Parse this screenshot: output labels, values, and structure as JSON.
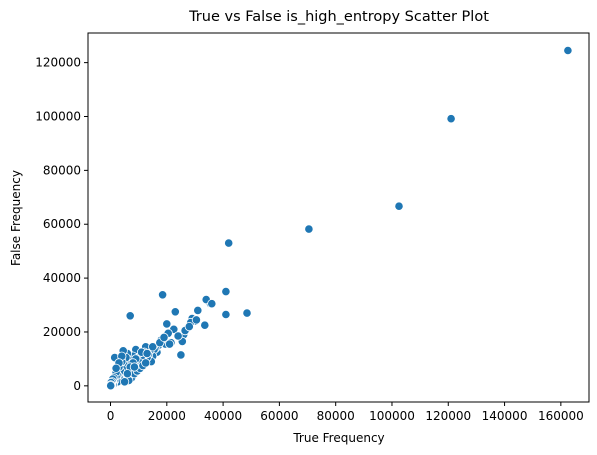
{
  "chart_data": {
    "type": "scatter",
    "title": "True vs False is_high_entropy Scatter Plot",
    "xlabel": "True Frequency",
    "ylabel": "False Frequency",
    "xlim": [
      -8000,
      170000
    ],
    "ylim": [
      -6000,
      131000
    ],
    "xticks": [
      0,
      20000,
      40000,
      60000,
      80000,
      100000,
      120000,
      140000,
      160000
    ],
    "yticks": [
      0,
      20000,
      40000,
      60000,
      80000,
      100000,
      120000
    ],
    "grid": false,
    "point_color": "#1f77b4",
    "points": [
      [
        162500,
        124500
      ],
      [
        121000,
        99200
      ],
      [
        102500,
        66700
      ],
      [
        70500,
        58200
      ],
      [
        42000,
        53000
      ],
      [
        41000,
        35000
      ],
      [
        48500,
        27000
      ],
      [
        41000,
        26500
      ],
      [
        35500,
        30500
      ],
      [
        34000,
        32000
      ],
      [
        33500,
        22500
      ],
      [
        31000,
        28000
      ],
      [
        30000,
        24000
      ],
      [
        29000,
        25000
      ],
      [
        28500,
        23500
      ],
      [
        27000,
        21000
      ],
      [
        26000,
        19000
      ],
      [
        25500,
        16500
      ],
      [
        25000,
        11500
      ],
      [
        23000,
        27500
      ],
      [
        22500,
        21000
      ],
      [
        21500,
        16000
      ],
      [
        20000,
        23000
      ],
      [
        20500,
        19500
      ],
      [
        19500,
        15500
      ],
      [
        18500,
        33800
      ],
      [
        18000,
        17000
      ],
      [
        17000,
        15000
      ],
      [
        16500,
        12500
      ],
      [
        16000,
        14000
      ],
      [
        15500,
        13500
      ],
      [
        15000,
        11000
      ],
      [
        14500,
        9000
      ],
      [
        14000,
        13000
      ],
      [
        13500,
        11500
      ],
      [
        13000,
        10500
      ],
      [
        12500,
        14500
      ],
      [
        12000,
        12500
      ],
      [
        11500,
        9500
      ],
      [
        11000,
        10000
      ],
      [
        10500,
        8500
      ],
      [
        10000,
        12000
      ],
      [
        9500,
        7000
      ],
      [
        9000,
        13500
      ],
      [
        8500,
        6000
      ],
      [
        8000,
        11000
      ],
      [
        7500,
        9500
      ],
      [
        7000,
        26000
      ],
      [
        7000,
        5000
      ],
      [
        6500,
        8000
      ],
      [
        6000,
        12000
      ],
      [
        6000,
        6500
      ],
      [
        5500,
        3500
      ],
      [
        5500,
        10500
      ],
      [
        5000,
        7500
      ],
      [
        4500,
        6000
      ],
      [
        4500,
        13000
      ],
      [
        4000,
        4500
      ],
      [
        4000,
        9000
      ],
      [
        3500,
        2500
      ],
      [
        3500,
        5500
      ],
      [
        3000,
        7000
      ],
      [
        3000,
        3000
      ],
      [
        2500,
        4000
      ],
      [
        2500,
        1500
      ],
      [
        2000,
        3500
      ],
      [
        2000,
        5000
      ],
      [
        1500,
        2000
      ],
      [
        1500,
        10500
      ],
      [
        1200,
        3000
      ],
      [
        1000,
        1000
      ],
      [
        1000,
        500
      ],
      [
        800,
        2500
      ],
      [
        600,
        1500
      ],
      [
        500,
        300
      ],
      [
        400,
        800
      ],
      [
        300,
        200
      ],
      [
        200,
        1200
      ],
      [
        150,
        100
      ],
      [
        100,
        400
      ],
      [
        50,
        50
      ],
      [
        7500,
        3000
      ],
      [
        8500,
        4500
      ],
      [
        9500,
        5500
      ],
      [
        10500,
        6500
      ],
      [
        11500,
        7500
      ],
      [
        12500,
        8500
      ],
      [
        6500,
        2000
      ],
      [
        5000,
        1500
      ],
      [
        9000,
        10000
      ],
      [
        8000,
        8500
      ],
      [
        7000,
        7000
      ],
      [
        11000,
        12500
      ],
      [
        13000,
        12000
      ],
      [
        15000,
        14500
      ],
      [
        17500,
        16000
      ],
      [
        19000,
        18000
      ],
      [
        21000,
        15500
      ],
      [
        24000,
        18500
      ],
      [
        26500,
        20500
      ],
      [
        28000,
        22000
      ],
      [
        30500,
        24500
      ],
      [
        36000,
        30500
      ],
      [
        4000,
        11000
      ],
      [
        3000,
        8500
      ],
      [
        2000,
        6500
      ],
      [
        6000,
        4500
      ],
      [
        8500,
        7000
      ]
    ]
  }
}
